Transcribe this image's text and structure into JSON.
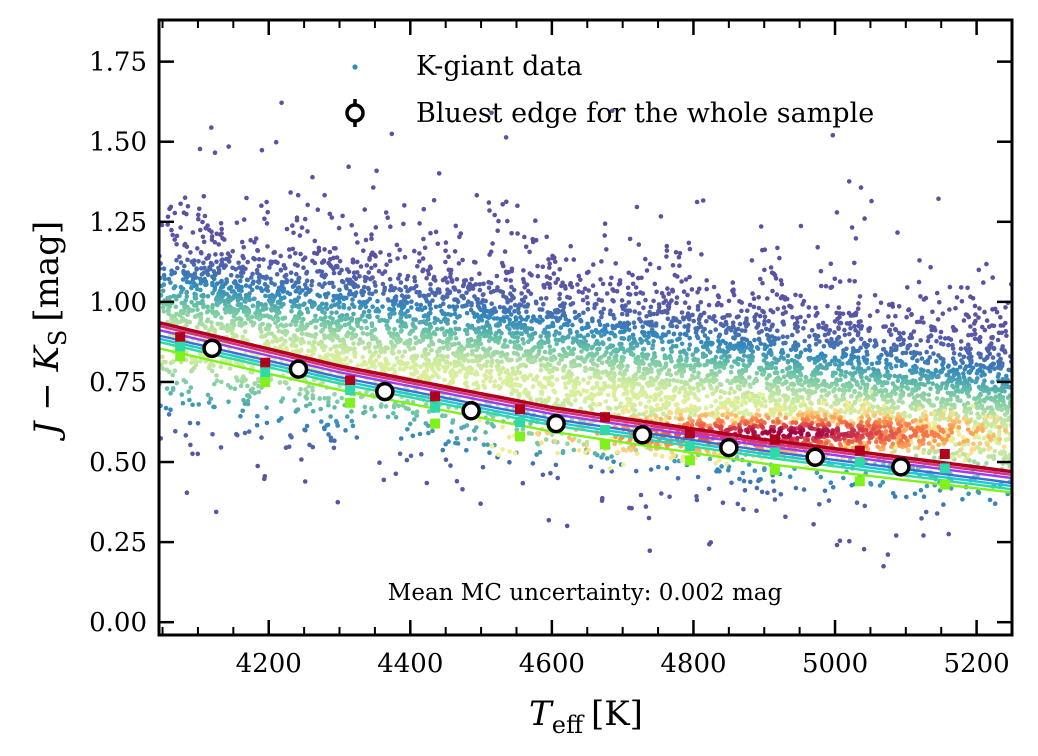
{
  "chart_data": {
    "type": "scatter",
    "xlabel_main": "T",
    "xlabel_sub": "eff",
    "xlabel_unit": "[K]",
    "ylabel_main": "J − K",
    "ylabel_sub": "S",
    "ylabel_unit": "[mag]",
    "xlim": [
      4045,
      5250
    ],
    "ylim": [
      -0.04,
      1.88
    ],
    "xticks": [
      4200,
      4400,
      4600,
      4800,
      5000,
      5200
    ],
    "xtick_labels": [
      "4200",
      "4400",
      "4600",
      "4800",
      "5000",
      "5200"
    ],
    "yticks": [
      0.0,
      0.25,
      0.5,
      0.75,
      1.0,
      1.25,
      1.5,
      1.75
    ],
    "ytick_labels": [
      "0.00",
      "0.25",
      "0.50",
      "0.75",
      "1.00",
      "1.25",
      "1.50",
      "1.75"
    ],
    "legend": {
      "position": "upper-center",
      "entries": [
        "K-giant data",
        "Bluest edge for the whole sample"
      ]
    },
    "annotation": "Mean MC uncertainty: 0.002 mag",
    "scatter_density": {
      "description_series": "K-giant data",
      "colormap": "Spectral_r",
      "centroid": [
        [
          4045,
          0.98
        ],
        [
          4600,
          0.84
        ],
        [
          5250,
          0.62
        ]
      ],
      "core_peak": [
        4930,
        0.59
      ]
    },
    "bluest_edge": {
      "name": "Bluest edge for the whole sample",
      "x": [
        4120,
        4242,
        4364,
        4486,
        4606,
        4728,
        4850,
        4972,
        5093
      ],
      "y": [
        0.855,
        0.79,
        0.72,
        0.66,
        0.62,
        0.585,
        0.545,
        0.515,
        0.485
      ],
      "yerr": [
        0.002,
        0.002,
        0.002,
        0.002,
        0.002,
        0.002,
        0.002,
        0.002,
        0.002
      ]
    },
    "fit_lines": [
      {
        "name": "fit-red",
        "color": "#b0001e",
        "x": [
          4045,
          4300,
          4600,
          4900,
          5250
        ],
        "y": [
          0.935,
          0.8,
          0.67,
          0.57,
          0.47
        ]
      },
      {
        "name": "fit-pink",
        "color": "#d7308a",
        "x": [
          4045,
          4300,
          4600,
          4900,
          5250
        ],
        "y": [
          0.925,
          0.79,
          0.66,
          0.56,
          0.46
        ]
      },
      {
        "name": "fit-purple",
        "color": "#9b3df0",
        "x": [
          4045,
          4300,
          4600,
          4900,
          5250
        ],
        "y": [
          0.912,
          0.78,
          0.65,
          0.55,
          0.45
        ]
      },
      {
        "name": "fit-blue",
        "color": "#3a6fd8",
        "x": [
          4045,
          4300,
          4600,
          4900,
          5250
        ],
        "y": [
          0.895,
          0.765,
          0.635,
          0.535,
          0.435
        ]
      },
      {
        "name": "fit-cyan",
        "color": "#1ec8d6",
        "x": [
          4045,
          4300,
          4600,
          4900,
          5250
        ],
        "y": [
          0.885,
          0.755,
          0.625,
          0.525,
          0.425
        ]
      },
      {
        "name": "fit-teal",
        "color": "#2fd9a8",
        "x": [
          4045,
          4300,
          4600,
          4900,
          5250
        ],
        "y": [
          0.875,
          0.745,
          0.615,
          0.515,
          0.415
        ]
      },
      {
        "name": "fit-green",
        "color": "#7ef21a",
        "x": [
          4045,
          4300,
          4600,
          4900,
          5250
        ],
        "y": [
          0.855,
          0.725,
          0.595,
          0.495,
          0.405
        ]
      }
    ],
    "binned_edges": [
      {
        "name": "edge-red",
        "color": "#b0001e",
        "y": [
          0.89,
          0.81,
          0.755,
          0.705,
          0.665,
          0.64,
          0.59,
          0.57,
          0.535,
          0.525
        ]
      },
      {
        "name": "edge-teal",
        "color": "#2fd9a8",
        "y": [
          0.86,
          0.78,
          0.725,
          0.67,
          0.625,
          0.6,
          0.55,
          0.53,
          0.5,
          0.48
        ]
      },
      {
        "name": "edge-green",
        "color": "#7ef21a",
        "y": [
          0.83,
          0.75,
          0.685,
          0.62,
          0.58,
          0.555,
          0.505,
          0.475,
          0.44,
          0.43
        ]
      }
    ],
    "binned_edges_x": [
      4075,
      4195,
      4315,
      4435,
      4555,
      4675,
      4795,
      4915,
      5035,
      5155
    ]
  }
}
